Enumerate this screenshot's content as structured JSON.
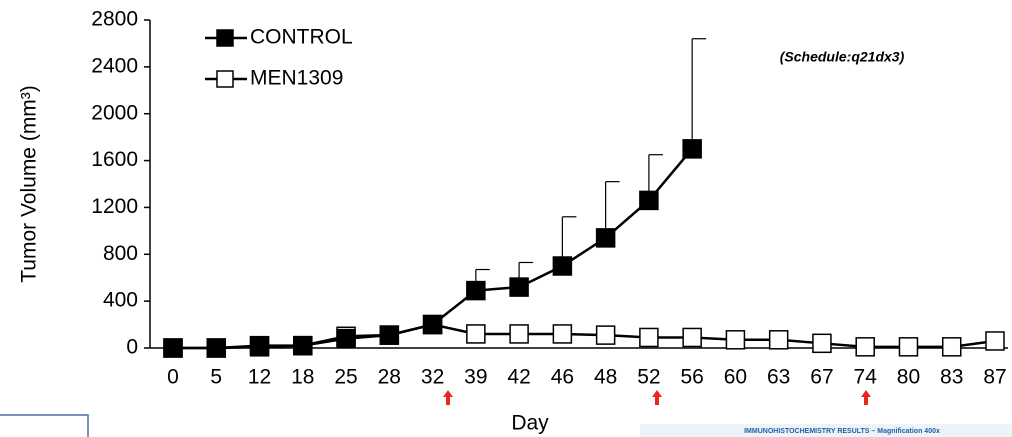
{
  "chart_data": {
    "type": "line",
    "x_label": "Day",
    "y_label": "Tumor Volume (mm³)",
    "annotation": "(Schedule:q21dx3)",
    "categories": [
      "0",
      "5",
      "12",
      "18",
      "25",
      "28",
      "32",
      "39",
      "42",
      "46",
      "48",
      "52",
      "56",
      "60",
      "63",
      "67",
      "74",
      "80",
      "83",
      "87"
    ],
    "series": [
      {
        "name": "CONTROL",
        "color": "#000000",
        "marker_fill": "#000000",
        "values": [
          0,
          0,
          10,
          20,
          80,
          110,
          200,
          490,
          520,
          700,
          940,
          1260,
          1700,
          null,
          null,
          null,
          null,
          null,
          null,
          null
        ],
        "errors": [
          null,
          null,
          null,
          null,
          null,
          null,
          null,
          180,
          210,
          420,
          480,
          390,
          940,
          null,
          null,
          null,
          null,
          null,
          null,
          null
        ]
      },
      {
        "name": "MEN1309",
        "color": "#000000",
        "marker_fill": "#ffffff",
        "values": [
          0,
          0,
          20,
          20,
          100,
          110,
          200,
          120,
          120,
          120,
          110,
          90,
          90,
          70,
          70,
          40,
          10,
          10,
          10,
          60
        ]
      }
    ],
    "ylim": [
      0,
      2800
    ],
    "yticks": [
      0,
      400,
      800,
      1200,
      1600,
      2000,
      2400,
      2800
    ]
  },
  "footer_text": "IMMUNOHISTOCHEMISTRY RESULTS – Magnification 400x"
}
